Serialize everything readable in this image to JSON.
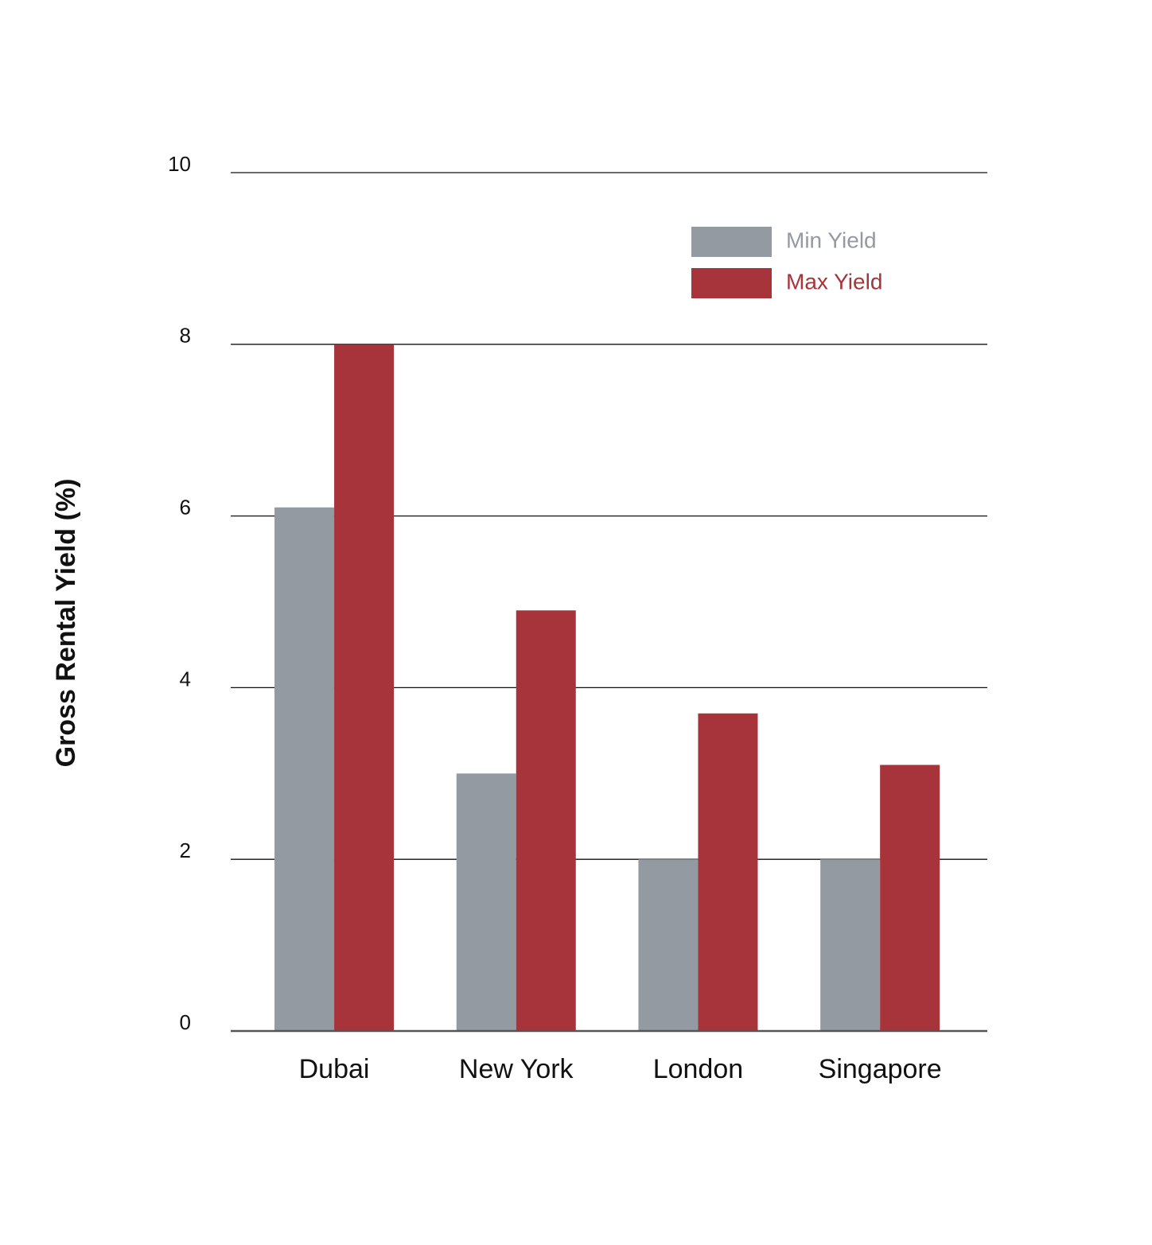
{
  "chart_data": {
    "type": "bar",
    "y_label": "Gross Rental Yield (%)",
    "categories": [
      "Dubai",
      "New York",
      "London",
      "Singapore"
    ],
    "series": [
      {
        "name": "Min Yield",
        "color": "#939aa1",
        "values": [
          6.1,
          3,
          2,
          2
        ]
      },
      {
        "name": "Max Yield",
        "color": "#a6343a",
        "values": [
          8,
          4.9,
          3.7,
          3.1
        ]
      }
    ],
    "ylim": [
      0,
      10
    ],
    "yticks": [
      0,
      2,
      4,
      6,
      8,
      10
    ],
    "grid": true,
    "legend": "top-right"
  }
}
